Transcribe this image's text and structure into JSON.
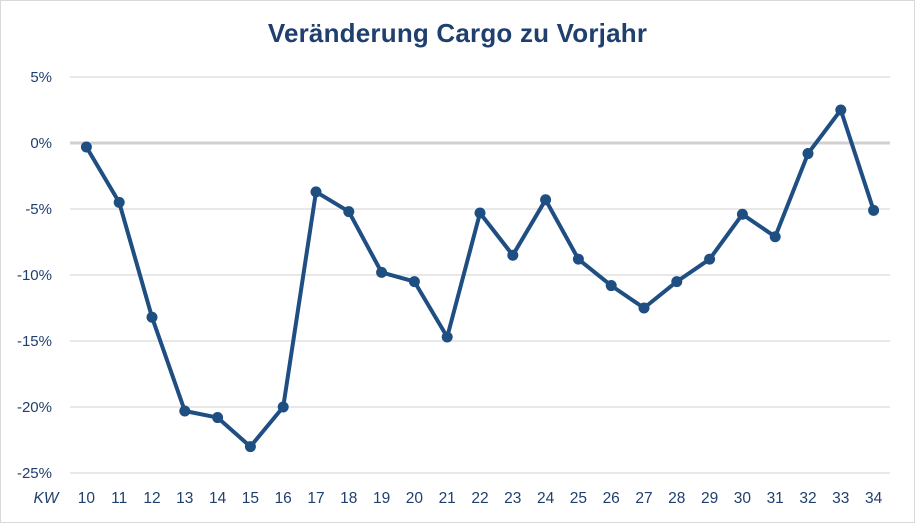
{
  "chart_data": {
    "type": "line",
    "title": "Veränderung Cargo zu Vorjahr",
    "xlabel": "KW",
    "ylabel": "",
    "ylim": [
      -25,
      5
    ],
    "yticks": [
      5,
      0,
      -5,
      -10,
      -15,
      -20,
      -25
    ],
    "ytick_labels": [
      "5%",
      "0%",
      "-5%",
      "-10%",
      "-15%",
      "-20%",
      "-25%"
    ],
    "grid": true,
    "legend": null,
    "categories": [
      "10",
      "11",
      "12",
      "13",
      "14",
      "15",
      "16",
      "17",
      "18",
      "19",
      "20",
      "21",
      "22",
      "23",
      "24",
      "25",
      "26",
      "27",
      "28",
      "29",
      "30",
      "31",
      "32",
      "33",
      "34"
    ],
    "series": [
      {
        "name": "Veränderung Cargo zu Vorjahr",
        "color": "#1f4e82",
        "values": [
          -0.3,
          -4.5,
          -13.2,
          -20.3,
          -20.8,
          -23.0,
          -20.0,
          -3.7,
          -5.2,
          -9.8,
          -10.5,
          -14.7,
          -5.3,
          -8.5,
          -4.3,
          -8.8,
          -10.8,
          -12.5,
          -10.5,
          -8.8,
          -5.4,
          -7.1,
          -0.8,
          2.5,
          -5.1
        ]
      }
    ]
  },
  "colors": {
    "line": "#1f4e82",
    "text": "#1f3f6e",
    "grid": "#d9d9d9",
    "zero_line": "#d0d0d0"
  }
}
